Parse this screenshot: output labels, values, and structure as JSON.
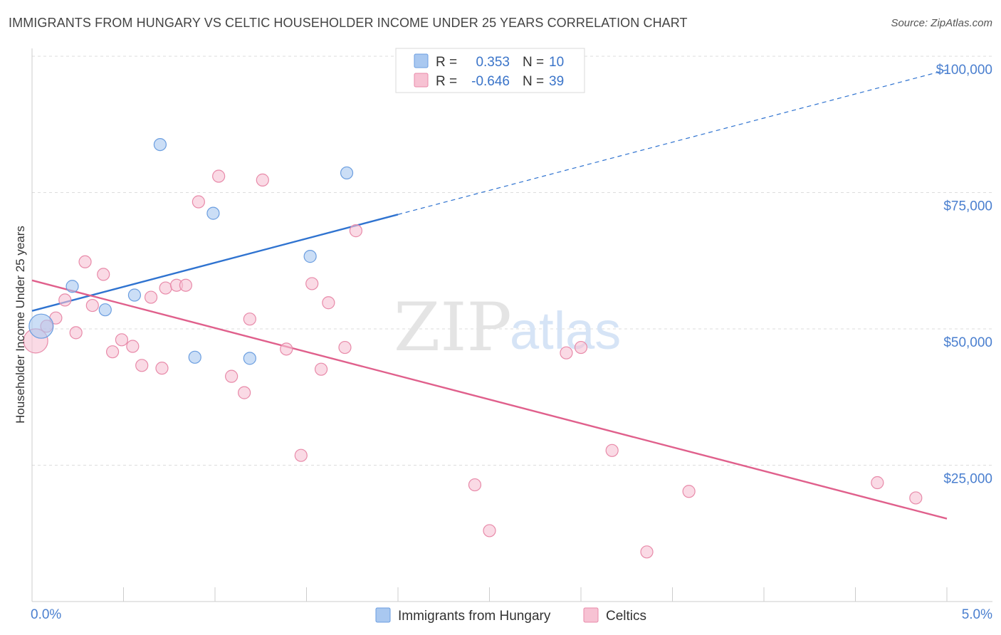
{
  "header": {
    "title": "IMMIGRANTS FROM HUNGARY VS CELTIC HOUSEHOLDER INCOME UNDER 25 YEARS CORRELATION CHART",
    "source": "Source: ZipAtlas.com"
  },
  "watermark": {
    "zip": "ZIP",
    "atlas": "atlas"
  },
  "stats_box": {
    "rows": [
      {
        "r_label": "R =",
        "r_value": "0.353",
        "n_label": "N =",
        "n_value": "10",
        "color": "#a9c8f0",
        "border": "#6b9ee0"
      },
      {
        "r_label": "R =",
        "r_value": "-0.646",
        "n_label": "N =",
        "n_value": "39",
        "color": "#f7c2d3",
        "border": "#e88aa9"
      }
    ]
  },
  "chart_data": {
    "type": "scatter",
    "title": "IMMIGRANTS FROM HUNGARY VS CELTIC HOUSEHOLDER INCOME UNDER 25 YEARS CORRELATION CHART",
    "xlabel": "",
    "ylabel": "Householder Income Under 25 years",
    "xlim": [
      0,
      5
    ],
    "ylim": [
      0,
      105000
    ],
    "x_tick_labels": [
      "0.0%",
      "5.0%"
    ],
    "y_ticks": [
      {
        "value": 25000,
        "label": "$25,000"
      },
      {
        "value": 50000,
        "label": "$50,000"
      },
      {
        "value": 75000,
        "label": "$75,000"
      },
      {
        "value": 100000,
        "label": "$100,000"
      }
    ],
    "grid": true,
    "legend_position": "bottom-center",
    "series": [
      {
        "name": "Immigrants from Hungary",
        "color": "#a9c8f0",
        "stroke": "#6b9ee0",
        "trend_color": "#2f73d0",
        "points": [
          {
            "x": 0.05,
            "y": 50500,
            "size": "large"
          },
          {
            "x": 0.22,
            "y": 57800
          },
          {
            "x": 0.4,
            "y": 53500
          },
          {
            "x": 0.56,
            "y": 56200
          },
          {
            "x": 0.7,
            "y": 83800
          },
          {
            "x": 0.89,
            "y": 44800
          },
          {
            "x": 0.99,
            "y": 71200
          },
          {
            "x": 1.19,
            "y": 44600
          },
          {
            "x": 1.52,
            "y": 63300
          },
          {
            "x": 1.72,
            "y": 78600
          }
        ],
        "trend": {
          "x_solid": [
            0,
            2.0
          ],
          "x_dashed": [
            2.0,
            5.0
          ],
          "y_at_x0": 53300,
          "y_at_x5": 97500
        }
      },
      {
        "name": "Celtics",
        "color": "#f7c2d3",
        "stroke": "#e88aa9",
        "trend_color": "#e0608c",
        "points": [
          {
            "x": 0.02,
            "y": 47800,
            "size": "large"
          },
          {
            "x": 0.08,
            "y": 50500
          },
          {
            "x": 0.13,
            "y": 52000
          },
          {
            "x": 0.18,
            "y": 55300
          },
          {
            "x": 0.24,
            "y": 49300
          },
          {
            "x": 0.29,
            "y": 62300
          },
          {
            "x": 0.33,
            "y": 54300
          },
          {
            "x": 0.39,
            "y": 60000
          },
          {
            "x": 0.44,
            "y": 45800
          },
          {
            "x": 0.49,
            "y": 48000
          },
          {
            "x": 0.55,
            "y": 46800
          },
          {
            "x": 0.6,
            "y": 43300
          },
          {
            "x": 0.65,
            "y": 55800
          },
          {
            "x": 0.71,
            "y": 42800
          },
          {
            "x": 0.73,
            "y": 57500
          },
          {
            "x": 0.79,
            "y": 58000
          },
          {
            "x": 0.84,
            "y": 58000
          },
          {
            "x": 0.91,
            "y": 73300
          },
          {
            "x": 1.02,
            "y": 78000
          },
          {
            "x": 1.09,
            "y": 41300
          },
          {
            "x": 1.16,
            "y": 38300
          },
          {
            "x": 1.19,
            "y": 51800
          },
          {
            "x": 1.26,
            "y": 77300
          },
          {
            "x": 1.39,
            "y": 46300
          },
          {
            "x": 1.47,
            "y": 26800
          },
          {
            "x": 1.53,
            "y": 58300
          },
          {
            "x": 1.58,
            "y": 42600
          },
          {
            "x": 1.62,
            "y": 54800
          },
          {
            "x": 1.71,
            "y": 46600
          },
          {
            "x": 1.77,
            "y": 68000
          },
          {
            "x": 2.42,
            "y": 21400
          },
          {
            "x": 2.5,
            "y": 13000
          },
          {
            "x": 2.92,
            "y": 45600
          },
          {
            "x": 3.0,
            "y": 46600
          },
          {
            "x": 3.17,
            "y": 27700
          },
          {
            "x": 3.36,
            "y": 9100
          },
          {
            "x": 3.59,
            "y": 20200
          },
          {
            "x": 4.62,
            "y": 21800
          },
          {
            "x": 4.83,
            "y": 19000
          }
        ],
        "trend": {
          "x_solid": [
            0,
            5.0
          ],
          "y_at_x0": 58900,
          "y_at_x5": 15200
        }
      }
    ]
  }
}
